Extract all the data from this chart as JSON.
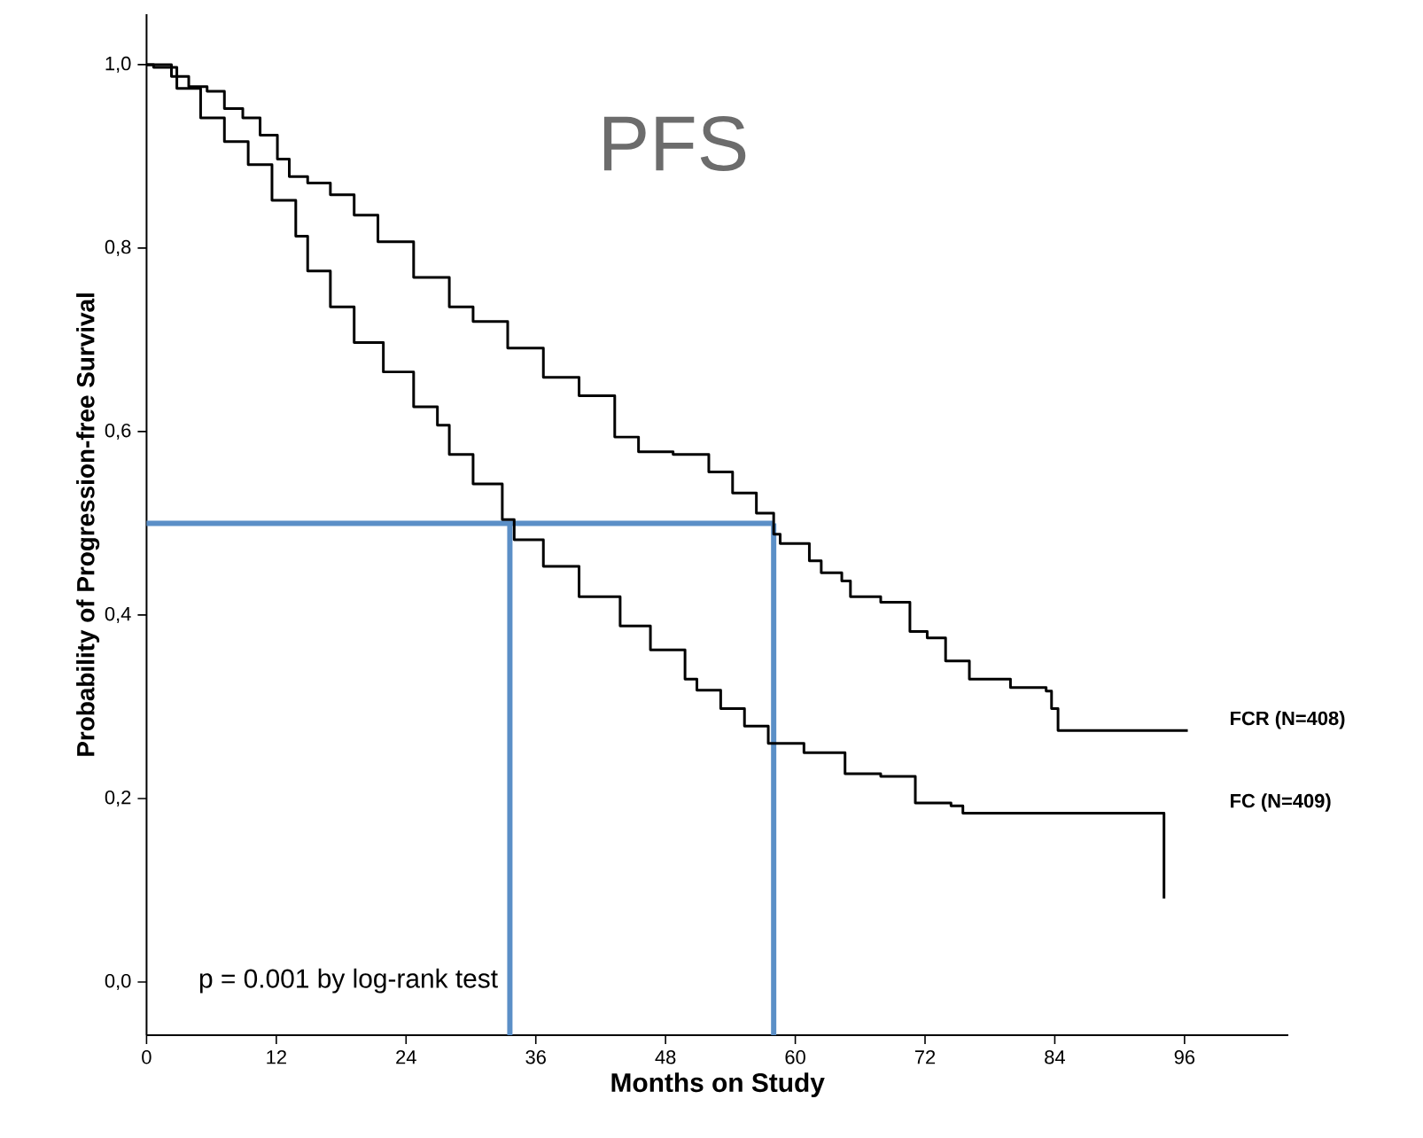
{
  "chart_data": {
    "type": "step",
    "title": "PFS",
    "xlabel": "Months on Study",
    "ylabel": "Probability of Progression-free Survival",
    "xlim": [
      0,
      105.6
    ],
    "ylim": [
      -0.058,
      1.055
    ],
    "xticks": [
      0,
      12,
      24,
      36,
      48,
      60,
      72,
      84,
      96
    ],
    "yticks": [
      {
        "value": 0.0,
        "label": "0,0"
      },
      {
        "value": 0.2,
        "label": "0,2"
      },
      {
        "value": 0.4,
        "label": "0,4"
      },
      {
        "value": 0.6,
        "label": "0,6"
      },
      {
        "value": 0.8,
        "label": "0,8"
      },
      {
        "value": 1.0,
        "label": "1,0"
      }
    ],
    "series": [
      {
        "name": "FCR (N=408)",
        "color": "#000000",
        "x": [
          0,
          0.65,
          2.3,
          3.9,
          5.6,
          7.2,
          8.9,
          10.5,
          12.1,
          13.2,
          14.9,
          17.0,
          19.2,
          21.4,
          24.7,
          28.0,
          30.2,
          33.4,
          36.7,
          40.0,
          43.3,
          45.5,
          48.7,
          52.0,
          54.2,
          56.4,
          58.0,
          58.6,
          61.3,
          62.4,
          64.3,
          65.1,
          67.9,
          70.6,
          72.2,
          73.9,
          76.1,
          79.9,
          83.2,
          83.7,
          84.3,
          96.3
        ],
        "values": [
          1.0,
          1.0,
          0.987,
          0.976,
          0.971,
          0.952,
          0.942,
          0.923,
          0.897,
          0.878,
          0.871,
          0.858,
          0.836,
          0.807,
          0.768,
          0.736,
          0.72,
          0.691,
          0.659,
          0.639,
          0.594,
          0.578,
          0.575,
          0.556,
          0.533,
          0.511,
          0.488,
          0.478,
          0.459,
          0.446,
          0.437,
          0.42,
          0.414,
          0.382,
          0.375,
          0.35,
          0.33,
          0.321,
          0.317,
          0.298,
          0.274,
          0.274
        ]
      },
      {
        "name": "FC (N=409)",
        "color": "#000000",
        "x": [
          0,
          0.65,
          2.8,
          5.0,
          7.2,
          9.4,
          11.6,
          13.8,
          14.9,
          17.0,
          19.2,
          21.9,
          24.7,
          26.9,
          28.0,
          30.2,
          32.9,
          34.0,
          36.7,
          40.0,
          43.8,
          46.6,
          49.8,
          50.9,
          53.1,
          54.2,
          55.3,
          57.5,
          60.8,
          64.6,
          67.9,
          71.1,
          74.4,
          75.5,
          94.1,
          94.1
        ],
        "values": [
          1.0,
          0.997,
          0.974,
          0.942,
          0.916,
          0.891,
          0.852,
          0.813,
          0.775,
          0.736,
          0.697,
          0.665,
          0.627,
          0.607,
          0.575,
          0.543,
          0.504,
          0.482,
          0.453,
          0.42,
          0.388,
          0.362,
          0.33,
          0.318,
          0.298,
          0.298,
          0.279,
          0.26,
          0.25,
          0.227,
          0.224,
          0.195,
          0.192,
          0.184,
          0.184,
          0.091
        ]
      }
    ],
    "ref_lines": [
      {
        "axis": "y",
        "value": 0.5,
        "color": "#5b8fc7"
      },
      {
        "axis": "x",
        "value": 33.6,
        "color": "#5b8fc7"
      },
      {
        "axis": "x",
        "value": 58.0,
        "color": "#5b8fc7"
      }
    ],
    "annotations": [
      "p = 0.001 by log-rank test"
    ],
    "grid": false,
    "marker": "none",
    "line_style": "solid"
  }
}
